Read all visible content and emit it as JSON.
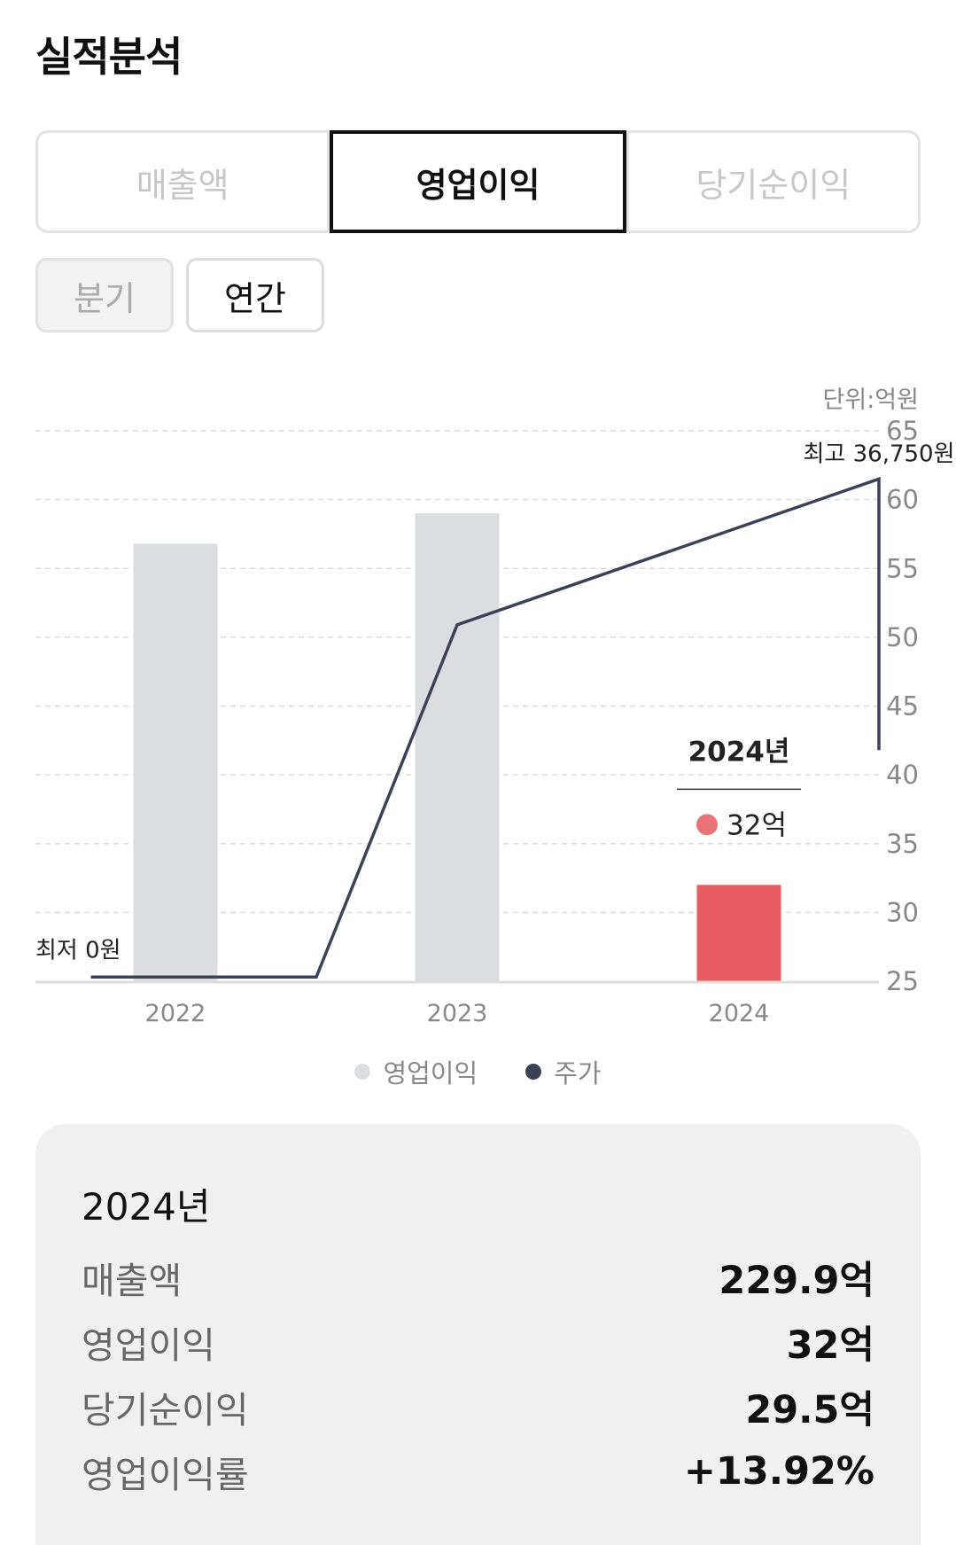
{
  "title": "실적분석",
  "metric_tabs": [
    {
      "label": "매출액",
      "active": false
    },
    {
      "label": "영업이익",
      "active": true
    },
    {
      "label": "당기순이익",
      "active": false
    }
  ],
  "period_tabs": [
    {
      "label": "분기",
      "active": false
    },
    {
      "label": "연간",
      "active": true
    }
  ],
  "chart_data": {
    "type": "bar",
    "unit_label": "단위:억원",
    "categories": [
      "2022",
      "2023",
      "2024"
    ],
    "ylim": [
      25,
      65
    ],
    "yticks": [
      "65",
      "60",
      "55",
      "50",
      "45",
      "40",
      "35",
      "30",
      "25"
    ],
    "bars": {
      "name": "영업이익",
      "values": [
        56.8,
        59.0,
        32
      ],
      "colors": [
        "#dcdde1",
        "#dcdde1",
        "#e85c62"
      ]
    },
    "line": {
      "name": "주가",
      "points": [
        {
          "x": "2021.7",
          "y": 25.3
        },
        {
          "x": "2022.5",
          "y": 25.3
        },
        {
          "x": "2023.0",
          "y": 50.9
        },
        {
          "x": "2024.7",
          "y": 61.5
        },
        {
          "x": "2025.5",
          "y": 41.8
        }
      ],
      "color": "#3d4156"
    },
    "annotations": {
      "max_label": "최고 36,750원",
      "min_label": "최저 0원"
    },
    "tooltip": {
      "title": "2024년",
      "value": "32억"
    },
    "grid": true,
    "legend_position": "bottom"
  },
  "legend": [
    {
      "label": "영업이익",
      "color": "#dcdde1"
    },
    {
      "label": "주가",
      "color": "#3d4156"
    }
  ],
  "summary": {
    "year": "2024년",
    "rows": [
      {
        "key": "매출액",
        "value": "229.9억"
      },
      {
        "key": "영업이익",
        "value": "32억"
      },
      {
        "key": "당기순이익",
        "value": "29.5억"
      },
      {
        "key": "영업이익률",
        "value": "+13.92%"
      }
    ]
  }
}
